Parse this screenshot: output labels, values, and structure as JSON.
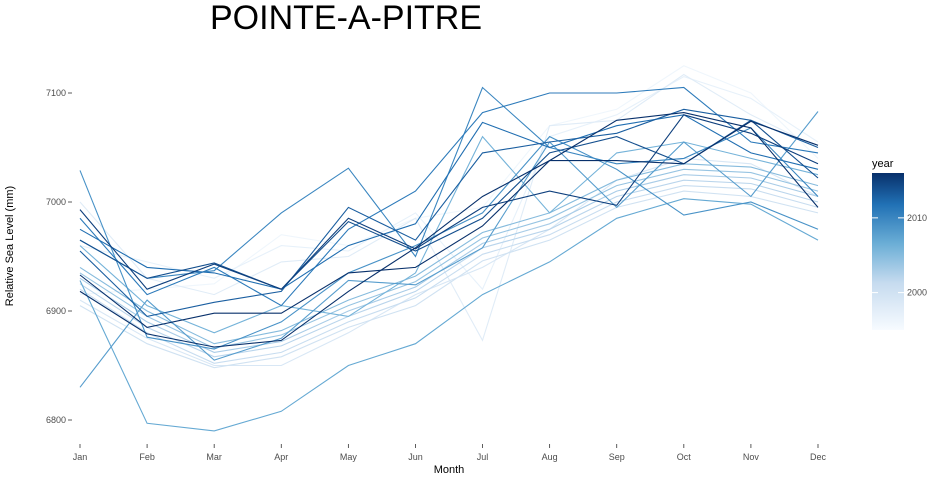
{
  "chart_data": {
    "type": "line",
    "title": "POINTE-A-PITRE",
    "xlabel": "Month",
    "ylabel": "Relative Sea Level (mm)",
    "x": [
      "Jan",
      "Feb",
      "Mar",
      "Apr",
      "May",
      "Jun",
      "Jul",
      "Aug",
      "Sep",
      "Oct",
      "Nov",
      "Dec"
    ],
    "y_ticks": [
      6800,
      6900,
      7000,
      7100
    ],
    "ylim": [
      6778,
      7130
    ],
    "grid": false,
    "legend": {
      "title": "year",
      "position": "right",
      "type": "colorbar",
      "labels": [
        "2000",
        "2010"
      ],
      "label_values": [
        2000,
        2010
      ],
      "range": [
        1995,
        2016
      ],
      "low_color": "#f7fbff",
      "high_color": "#08306b"
    },
    "series": [
      {
        "year": 1996,
        "values": [
          6915,
          6920,
          6925,
          6970,
          6960,
          6985,
          6995,
          7070,
          7085,
          7125,
          7100,
          7040
        ]
      },
      {
        "year": 1997,
        "values": [
          6960,
          6945,
          6930,
          6960,
          6955,
          6990,
          6920,
          7060,
          7080,
          7115,
          7095,
          7055
        ]
      },
      {
        "year": 1998,
        "values": [
          7000,
          6930,
          6915,
          6945,
          6950,
          6985,
          6873,
          7070,
          7075,
          7117,
          7080,
          7050
        ]
      },
      {
        "year": 1999,
        "values": [
          6910,
          6875,
          6850,
          6850,
          6880,
          6915,
          6940,
          6975,
          7020,
          7040,
          7035,
          7005
        ]
      },
      {
        "year": 2000,
        "values": [
          6905,
          6870,
          6848,
          6858,
          6885,
          6905,
          6946,
          6965,
          6995,
          7010,
          7005,
          6990
        ]
      },
      {
        "year": 2001,
        "values": [
          6920,
          6880,
          6852,
          6862,
          6890,
          6912,
          6952,
          6970,
          7000,
          7015,
          7012,
          6995
        ]
      },
      {
        "year": 2002,
        "values": [
          6925,
          6885,
          6858,
          6868,
          6895,
          6918,
          6958,
          6975,
          7005,
          7020,
          7017,
          7000
        ]
      },
      {
        "year": 2003,
        "values": [
          6930,
          6890,
          6862,
          6872,
          6900,
          6922,
          6962,
          6980,
          7010,
          7025,
          7022,
          7005
        ]
      },
      {
        "year": 2004,
        "values": [
          6935,
          6895,
          6866,
          6878,
          6905,
          6927,
          6967,
          6985,
          7015,
          7030,
          7027,
          7010
        ]
      },
      {
        "year": 2005,
        "values": [
          6940,
          6900,
          6870,
          6882,
          6910,
          6932,
          6972,
          6990,
          7020,
          7035,
          7032,
          7015
        ]
      },
      {
        "year": 2006,
        "values": [
          6960,
          6905,
          6880,
          6905,
          6895,
          6935,
          7060,
          6990,
          7045,
          7055,
          7040,
          7025
        ]
      },
      {
        "year": 2007,
        "values": [
          6928,
          6797,
          6790,
          6808,
          6850,
          6870,
          6915,
          6945,
          6985,
          7003,
          6998,
          6965
        ]
      },
      {
        "year": 2008,
        "values": [
          6830,
          6910,
          6855,
          6875,
          6928,
          6924,
          6958,
          7055,
          6995,
          7055,
          7005,
          7083
        ]
      },
      {
        "year": 2009,
        "values": [
          7029,
          6876,
          6865,
          6890,
          6935,
          6960,
          6990,
          7060,
          7030,
          6988,
          7000,
          6975
        ]
      },
      {
        "year": 2010,
        "values": [
          6965,
          6930,
          6937,
          6990,
          7031,
          6950,
          7105,
          7050,
          7035,
          7040,
          7068,
          7005
        ]
      },
      {
        "year": 2011,
        "values": [
          6985,
          6915,
          6940,
          6905,
          6975,
          7010,
          7082,
          7100,
          7100,
          7105,
          7055,
          7045
        ]
      },
      {
        "year": 2012,
        "values": [
          6975,
          6940,
          6935,
          6920,
          6960,
          6980,
          7073,
          7050,
          7070,
          7080,
          7045,
          7030
        ]
      },
      {
        "year": 2013,
        "values": [
          6955,
          6895,
          6908,
          6918,
          6995,
          6965,
          7045,
          7055,
          7063,
          7085,
          7075,
          7050
        ]
      },
      {
        "year": 2014,
        "values": [
          6965,
          6930,
          6944,
          6920,
          6982,
          6955,
          6985,
          7045,
          7060,
          7035,
          7075,
          7022
        ]
      },
      {
        "year": 2015,
        "values": [
          6993,
          6920,
          6943,
          6920,
          6985,
          6957,
          6995,
          7010,
          6997,
          7080,
          7063,
          7035
        ]
      },
      {
        "year": 2016,
        "values": [
          6933,
          6885,
          6898,
          6898,
          6935,
          6940,
          6978,
          7038,
          7075,
          7082,
          7068,
          6995
        ]
      },
      {
        "year": 2017,
        "values": [
          6918,
          6879,
          6867,
          6873,
          6918,
          6958,
          7005,
          7038,
          7038,
          7035,
          7074,
          7052
        ]
      }
    ]
  }
}
